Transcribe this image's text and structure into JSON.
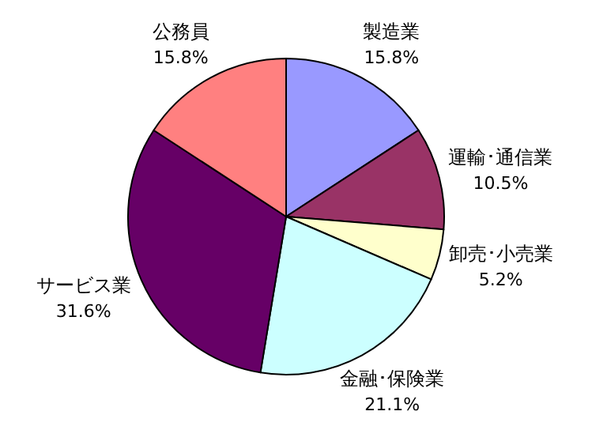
{
  "chart_data": {
    "type": "pie",
    "categories": [
      "製造業",
      "運輸･通信業",
      "卸売･小売業",
      "金融･保険業",
      "サービス業",
      "公務員"
    ],
    "values": [
      15.8,
      10.5,
      5.2,
      21.1,
      31.6,
      15.8
    ],
    "colors": [
      "#9999ff",
      "#993366",
      "#ffffcc",
      "#ccffff",
      "#660066",
      "#ff8080"
    ],
    "value_labels": [
      "15.8%",
      "10.5%",
      "5.2%",
      "21.1%",
      "31.6%",
      "15.8%"
    ]
  }
}
